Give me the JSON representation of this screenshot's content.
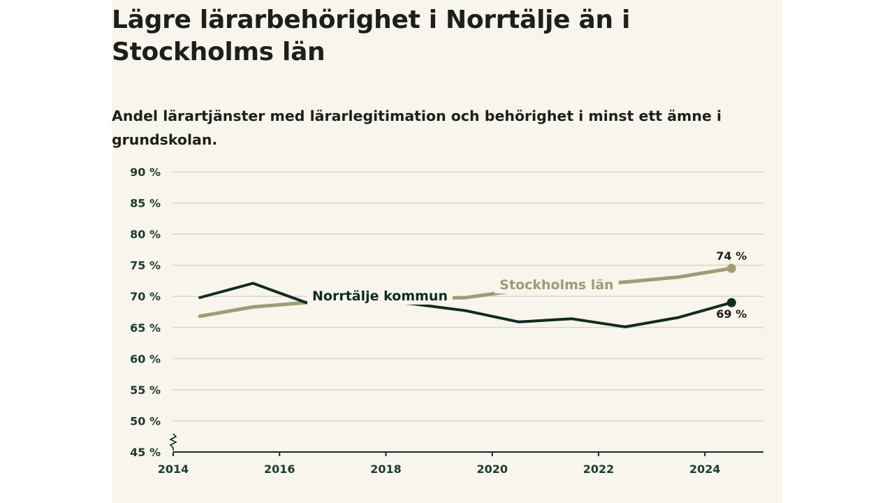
{
  "header": {
    "title": "Lägre lärarbehörighet i Norrtälje än i Stockholms län",
    "subtitle": "Andel lärartjänster med lärarlegitimation och behörighet i minst ett ämne i grundskolan."
  },
  "colors": {
    "norrtalje": "#0f2b24",
    "stockholm": "#a09b73",
    "grid": "#d9d6cb",
    "panel": "#f7f5ec"
  },
  "chart_data": {
    "type": "line",
    "title": "Lägre lärarbehörighet i Norrtälje än i Stockholms län",
    "subtitle": "Andel lärartjänster med lärarlegitimation och behörighet i minst ett ämne i grundskolan.",
    "xlabel": "",
    "ylabel": "",
    "xlim": [
      2014,
      2025.1
    ],
    "ylim": [
      45,
      90
    ],
    "y_ticks": [
      45,
      50,
      55,
      60,
      65,
      70,
      75,
      80,
      85,
      90
    ],
    "y_tick_labels": [
      "45 %",
      "50 %",
      "55 %",
      "60 %",
      "65 %",
      "70 %",
      "75 %",
      "80 %",
      "85 %",
      "90 %"
    ],
    "x_ticks": [
      2014,
      2016,
      2018,
      2020,
      2022,
      2024
    ],
    "x_tick_labels": [
      "2014",
      "2016",
      "2018",
      "2020",
      "2022",
      "2024"
    ],
    "axis_break": true,
    "grid": true,
    "legend": "none",
    "x": [
      2014.5,
      2015.5,
      2016.5,
      2017.5,
      2018.5,
      2019.5,
      2020.5,
      2021.5,
      2022.5,
      2023.5,
      2024.5
    ],
    "series": [
      {
        "name": "Norrtälje kommun",
        "color_key": "norrtalje",
        "values": [
          69.8,
          72.1,
          69.0,
          69.5,
          68.8,
          67.7,
          65.9,
          66.4,
          65.1,
          66.6,
          69
        ],
        "end_label": "69 %"
      },
      {
        "name": "Stockholms län",
        "color_key": "stockholm",
        "values": [
          66.8,
          68.3,
          69.0,
          69.3,
          69.6,
          69.8,
          71.0,
          71.6,
          72.3,
          73.1,
          74.5
        ],
        "end_label": "74 %"
      }
    ]
  }
}
